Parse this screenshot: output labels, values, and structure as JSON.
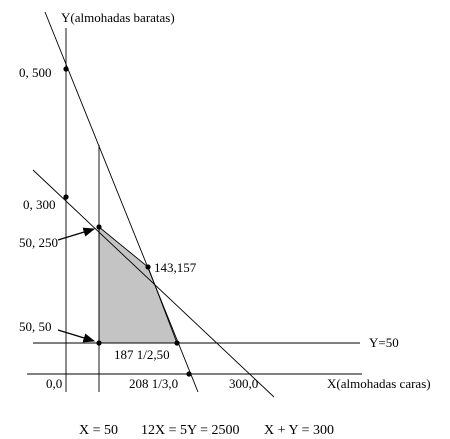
{
  "axes": {
    "y_label": "Y(almohadas baratas)",
    "x_label": "X(almohadas caras)"
  },
  "points": {
    "y_intercept_500": "0, 500",
    "y_intercept_300": "0, 300",
    "vertex_50_250": "50, 250",
    "vertex_143_157": "143,157",
    "vertex_50_50": "50, 50",
    "vertex_187_50": "187 1/2,50",
    "origin": "0,0",
    "x_intercept_208": "208 1/3,0",
    "x_intercept_300": "300,0"
  },
  "lines": {
    "y_equals_50": "Y=50"
  },
  "constraints": {
    "x_eq_50": "X = 50",
    "line_12x_5y": "12X = 5Y = 2500",
    "x_plus_y": "X + Y = 300"
  },
  "colors": {
    "feasible_region": "#c4c4c4",
    "lines": "#000000"
  }
}
